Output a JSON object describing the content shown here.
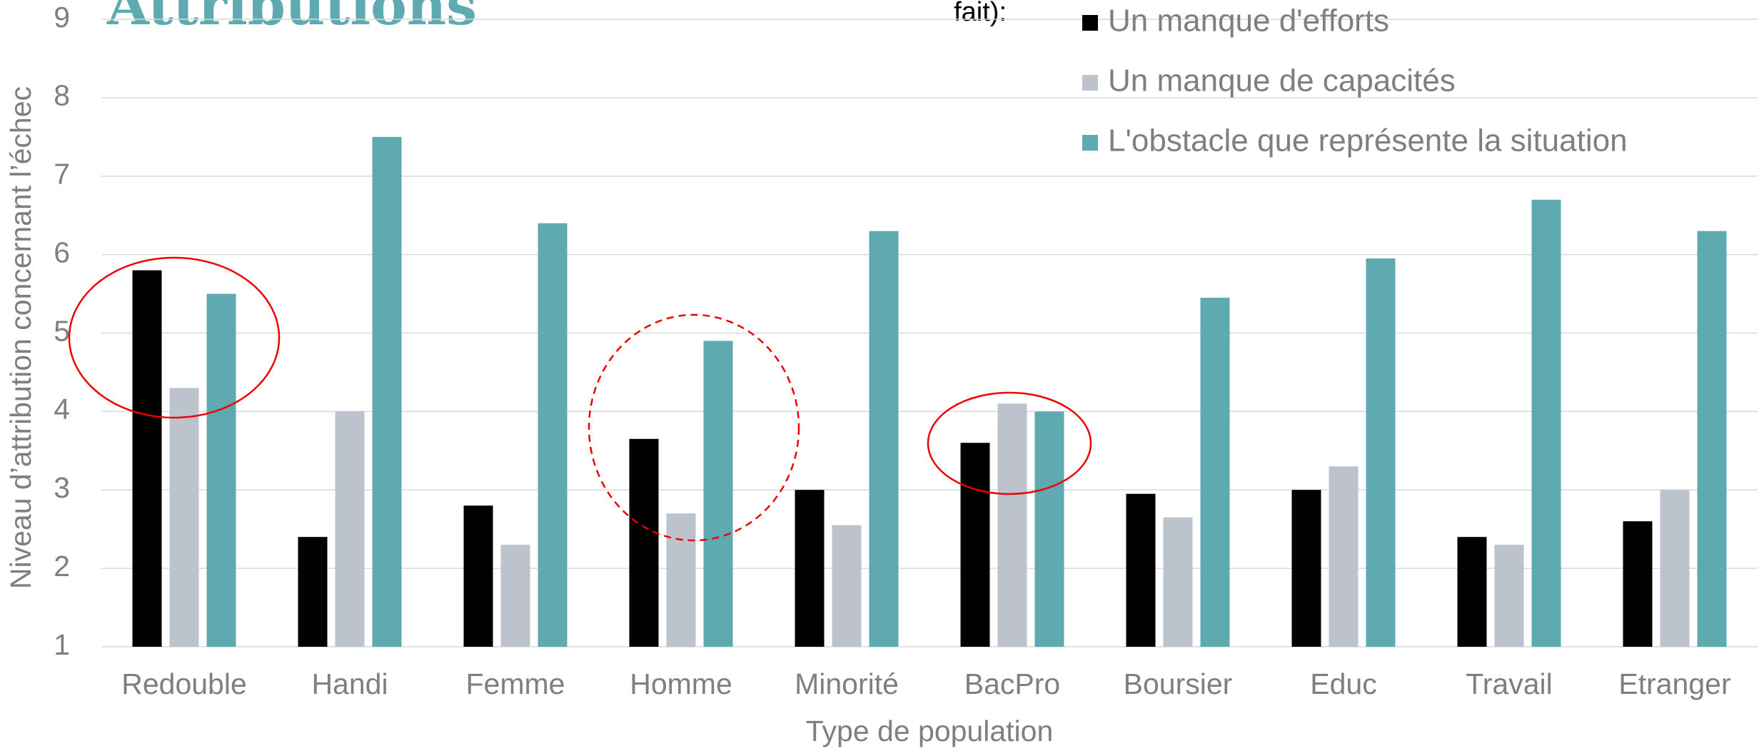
{
  "chart_data": {
    "type": "bar",
    "title": "Attributions",
    "legend_title": "fait):",
    "x_label": "Type de population",
    "y_label": "Niveau d’attribution concernant l’échec",
    "categories": [
      "Redouble",
      "Handi",
      "Femme",
      "Homme",
      "Minorité",
      "BacPro",
      "Boursier",
      "Educ",
      "Travail",
      "Etranger"
    ],
    "series": [
      {
        "name": "Un manque d'efforts",
        "color": "#000000",
        "values": [
          5.8,
          2.4,
          2.8,
          3.65,
          3.0,
          3.6,
          2.95,
          3.0,
          2.4,
          2.6
        ]
      },
      {
        "name": "Un manque de capacités",
        "color": "#bcc3cc",
        "values": [
          4.3,
          4.0,
          2.3,
          2.7,
          2.55,
          4.1,
          2.65,
          3.3,
          2.3,
          3.0
        ]
      },
      {
        "name": "L'obstacle que représente la situation",
        "color": "#5eaab0",
        "values": [
          5.5,
          7.5,
          6.4,
          4.9,
          6.3,
          4.0,
          5.45,
          5.95,
          6.7,
          6.3
        ]
      }
    ],
    "ylim": [
      1,
      9
    ],
    "yticks": [
      1,
      2,
      3,
      4,
      5,
      6,
      7,
      8,
      9
    ],
    "grid": true
  }
}
